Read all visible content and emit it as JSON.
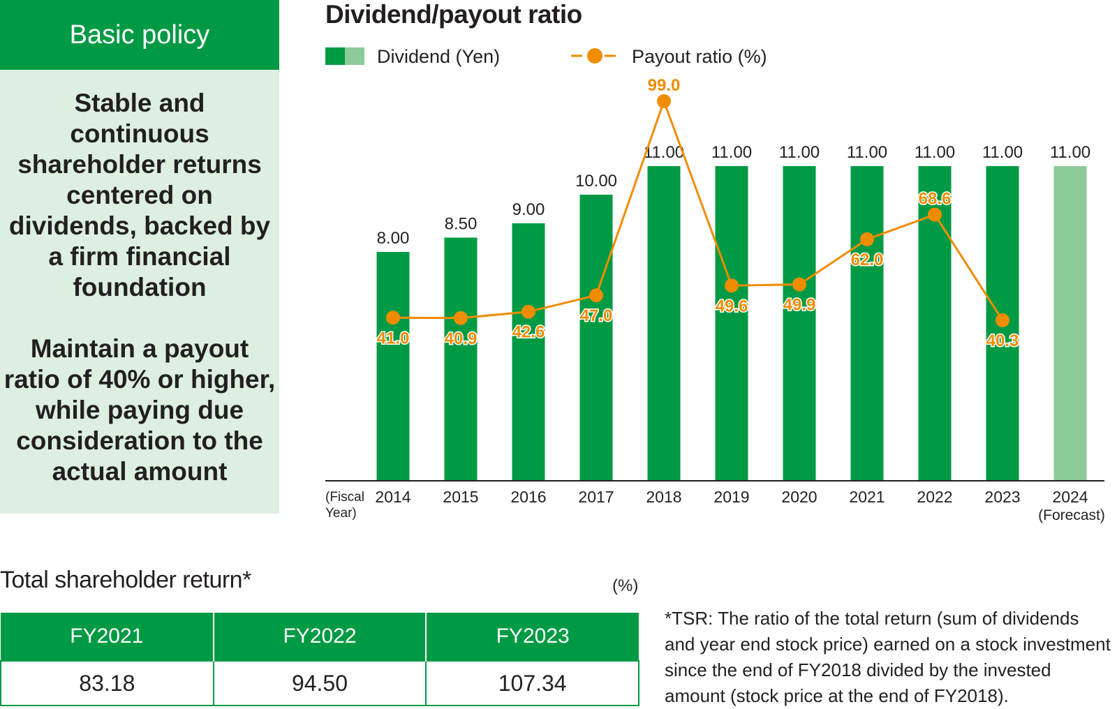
{
  "policy": {
    "header": "Basic policy",
    "paragraphs": [
      "Stable and continuous shareholder returns centered on dividends, backed by a firm financial foundation",
      "Maintain a payout ratio of 40% or higher, while paying due consideration to the actual amount"
    ]
  },
  "chart_data": {
    "type": "bar",
    "title": "Dividend/payout ratio",
    "categories": [
      "2014",
      "2015",
      "2016",
      "2017",
      "2018",
      "2019",
      "2020",
      "2021",
      "2022",
      "2023",
      "2024"
    ],
    "category_sublabels": {
      "2024": "(Forecast)"
    },
    "xlabel": "(Fiscal Year)",
    "series": [
      {
        "name": "Dividend (Yen)",
        "type": "bar",
        "values": [
          8.0,
          8.5,
          9.0,
          10.0,
          11.0,
          11.0,
          11.0,
          11.0,
          11.0,
          11.0,
          11.0
        ],
        "labels": [
          "8.00",
          "8.50",
          "9.00",
          "10.00",
          "11.00",
          "11.00",
          "11.00",
          "11.00",
          "11.00",
          "11.00",
          "11.00"
        ],
        "color": "#009a44",
        "forecast_color": "#8dcb98"
      },
      {
        "name": "Payout ratio (%)",
        "type": "line",
        "values": [
          41.0,
          40.9,
          42.6,
          47.0,
          99.0,
          49.6,
          49.9,
          62.0,
          68.6,
          40.3,
          null
        ],
        "labels": [
          "41.0",
          "40.9",
          "42.6",
          "47.0",
          "99.0",
          "49.6",
          "49.9",
          "62.0",
          "68.6",
          "40.3",
          ""
        ],
        "color": "#f08c00"
      }
    ],
    "grid": false,
    "legend_position": "top-left"
  },
  "tsr": {
    "title": "Total shareholder return*",
    "unit": "(%)",
    "columns": [
      "FY2021",
      "FY2022",
      "FY2023"
    ],
    "values": [
      "83.18",
      "94.50",
      "107.34"
    ],
    "note": "*TSR: The ratio of the total return (sum of dividends and year end stock price) earned on a stock investment since the end of FY2018 divided by the invested amount (stock price at the end of FY2018)."
  }
}
